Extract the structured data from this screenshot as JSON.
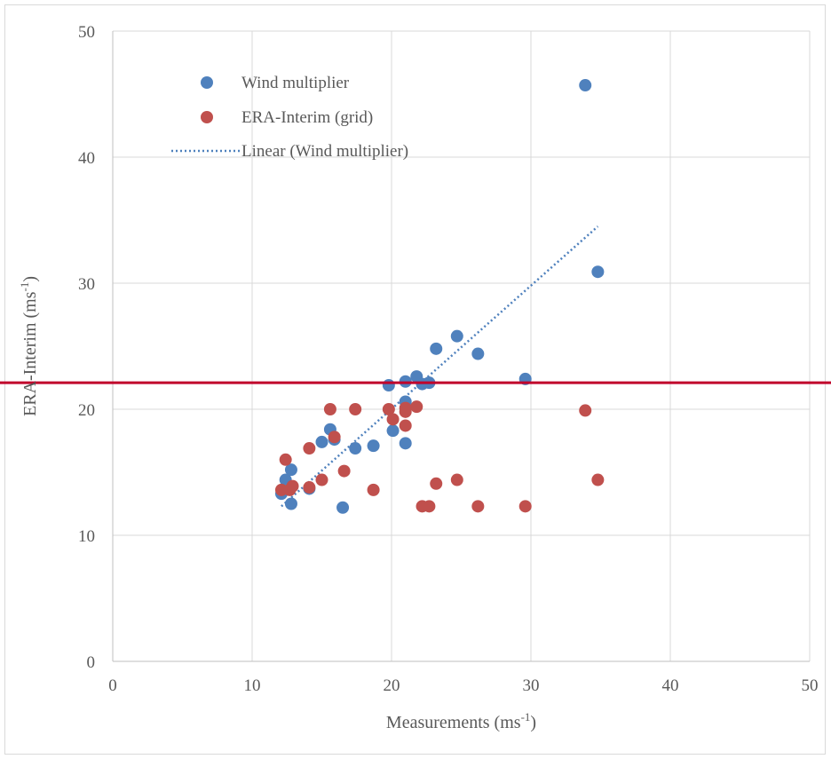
{
  "chart_data": {
    "type": "scatter",
    "xlabel": {
      "base": "Measurements (ms",
      "sup": "-1",
      "end": ")"
    },
    "ylabel": {
      "base": "ERA-Interim (ms",
      "sup": "-1",
      "end": ")"
    },
    "xlim": [
      0,
      50
    ],
    "ylim": [
      0,
      50
    ],
    "x_ticks": [
      "0",
      "10",
      "20",
      "30",
      "40",
      "50"
    ],
    "y_ticks": [
      "0",
      "10",
      "20",
      "30",
      "40",
      "50"
    ],
    "grid": true,
    "legend_position": "top-left",
    "series": [
      {
        "name": "Wind multiplier",
        "color": "#4f81bd",
        "points": [
          [
            12.1,
            13.3
          ],
          [
            12.4,
            14.4
          ],
          [
            12.8,
            15.2
          ],
          [
            12.8,
            12.5
          ],
          [
            14.1,
            13.7
          ],
          [
            15.0,
            17.4
          ],
          [
            15.6,
            18.4
          ],
          [
            15.9,
            17.6
          ],
          [
            16.5,
            12.2
          ],
          [
            17.4,
            16.9
          ],
          [
            18.7,
            17.1
          ],
          [
            19.8,
            21.9
          ],
          [
            20.1,
            18.3
          ],
          [
            21.0,
            20.6
          ],
          [
            21.0,
            22.2
          ],
          [
            21.0,
            17.3
          ],
          [
            21.8,
            22.6
          ],
          [
            22.2,
            22.0
          ],
          [
            22.7,
            22.1
          ],
          [
            23.2,
            24.8
          ],
          [
            24.7,
            25.8
          ],
          [
            26.2,
            24.4
          ],
          [
            29.6,
            22.4
          ],
          [
            33.9,
            45.7
          ],
          [
            34.8,
            30.9
          ]
        ]
      },
      {
        "name": "ERA-Interim (grid)",
        "color": "#c0504d",
        "points": [
          [
            12.1,
            13.6
          ],
          [
            12.4,
            16.0
          ],
          [
            12.7,
            13.6
          ],
          [
            12.9,
            13.9
          ],
          [
            14.1,
            16.9
          ],
          [
            14.1,
            13.8
          ],
          [
            15.0,
            14.4
          ],
          [
            15.6,
            20.0
          ],
          [
            15.9,
            17.8
          ],
          [
            16.6,
            15.1
          ],
          [
            17.4,
            20.0
          ],
          [
            18.7,
            13.6
          ],
          [
            19.8,
            20.0
          ],
          [
            20.1,
            19.2
          ],
          [
            21.0,
            19.8
          ],
          [
            21.0,
            20.1
          ],
          [
            21.0,
            18.7
          ],
          [
            21.8,
            20.2
          ],
          [
            22.2,
            12.3
          ],
          [
            22.7,
            12.3
          ],
          [
            23.2,
            14.1
          ],
          [
            24.7,
            14.4
          ],
          [
            26.2,
            12.3
          ],
          [
            29.6,
            12.3
          ],
          [
            33.9,
            19.9
          ],
          [
            34.8,
            14.4
          ]
        ]
      }
    ],
    "trendline": {
      "name": "Linear (Wind multiplier)",
      "color": "#4f81bd",
      "style": "dotted",
      "x": [
        12.1,
        34.8
      ],
      "y": [
        12.3,
        34.5
      ]
    },
    "reference_line": {
      "y": 22.1,
      "color": "#c0002b"
    }
  }
}
